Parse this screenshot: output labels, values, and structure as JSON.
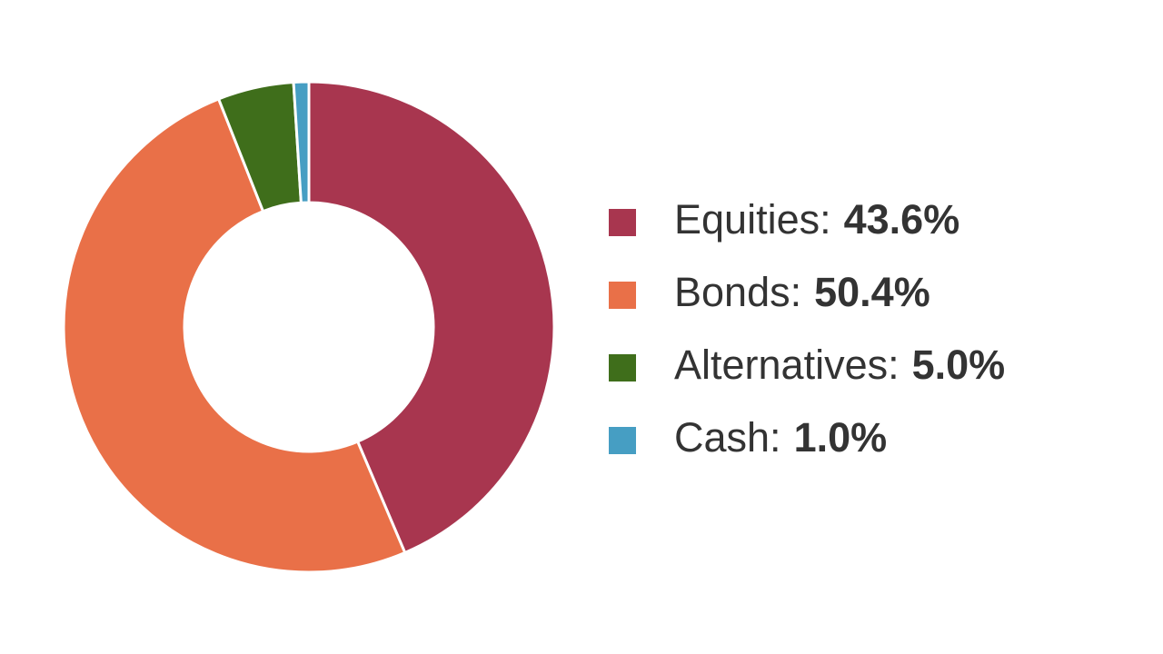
{
  "chart_data": {
    "type": "donut",
    "categories": [
      "Equities:",
      "Bonds:",
      "Alternatives:",
      "Cash:"
    ],
    "values": [
      43.6,
      50.4,
      5.0,
      1.0
    ],
    "value_labels": [
      "43.6%",
      "50.4%",
      "5.0%",
      "1.0%"
    ],
    "colors": [
      "#a8364f",
      "#e97048",
      "#3f6e1b",
      "#469ec3"
    ]
  }
}
